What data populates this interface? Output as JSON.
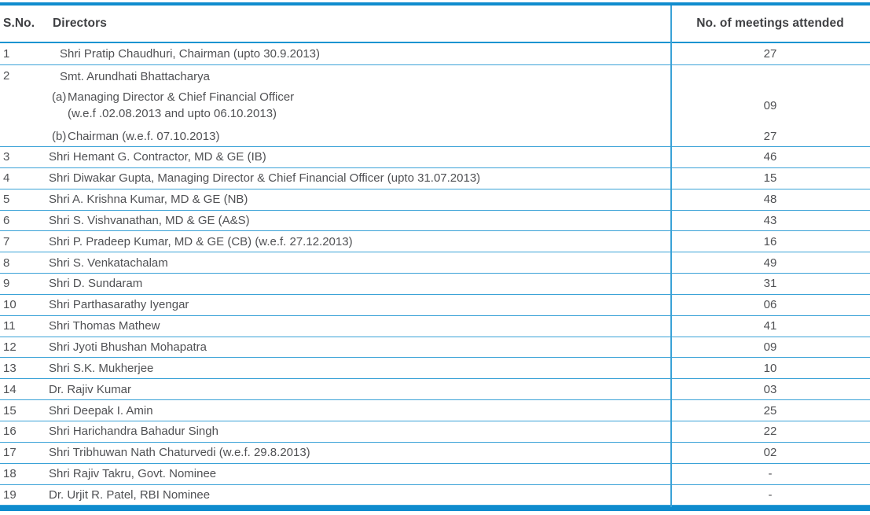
{
  "colors": {
    "line_thick": "#0f8cce",
    "line_thin": "#3aa2d7",
    "header_line": "#1b94d1",
    "header_text": "#3f4043",
    "body_text": "#505154"
  },
  "table": {
    "columns": [
      "S.No.",
      "Directors",
      "No. of meetings attended"
    ],
    "rows": [
      {
        "sno": "1",
        "director": "Shri Pratip Chaudhuri, Chairman (upto 30.9.2013)",
        "meetings": "27",
        "indent": true
      },
      {
        "sno": "2",
        "director": "Smt. Arundhati Bhattacharya",
        "indent": true,
        "sub_items": [
          {
            "label": "(a)",
            "lines": [
              "Managing Director & Chief Financial Officer",
              "(w.e.f .02.08.2013 and upto 06.10.2013)"
            ],
            "meetings": "09"
          },
          {
            "label": "(b)",
            "lines": [
              "Chairman (w.e.f. 07.10.2013)"
            ],
            "meetings": "27"
          }
        ]
      },
      {
        "sno": "3",
        "director": "Shri Hemant G. Contractor, MD & GE (IB)",
        "meetings": "46"
      },
      {
        "sno": "4",
        "director": "Shri Diwakar Gupta, Managing Director & Chief Financial Officer (upto 31.07.2013)",
        "meetings": "15"
      },
      {
        "sno": "5",
        "director": "Shri A. Krishna Kumar, MD & GE (NB)",
        "meetings": "48"
      },
      {
        "sno": "6",
        "director": "Shri S. Vishvanathan, MD & GE (A&S)",
        "meetings": "43"
      },
      {
        "sno": "7",
        "director": "Shri P. Pradeep Kumar, MD & GE (CB) (w.e.f. 27.12.2013)",
        "meetings": "16"
      },
      {
        "sno": "8",
        "director": "Shri S. Venkatachalam",
        "meetings": "49"
      },
      {
        "sno": "9",
        "director": "Shri D. Sundaram",
        "meetings": "31"
      },
      {
        "sno": "10",
        "director": "Shri Parthasarathy Iyengar",
        "meetings": "06"
      },
      {
        "sno": "11",
        "director": "Shri Thomas Mathew",
        "meetings": "41"
      },
      {
        "sno": "12",
        "director": "Shri Jyoti Bhushan  Mohapatra",
        "meetings": "09"
      },
      {
        "sno": "13",
        "director": "Shri S.K. Mukherjee",
        "meetings": "10"
      },
      {
        "sno": "14",
        "director": "Dr. Rajiv Kumar",
        "meetings": "03"
      },
      {
        "sno": "15",
        "director": "Shri Deepak I. Amin",
        "meetings": "25"
      },
      {
        "sno": "16",
        "director": "Shri Harichandra Bahadur Singh",
        "meetings": "22"
      },
      {
        "sno": "17",
        "director": "Shri Tribhuwan Nath Chaturvedi (w.e.f. 29.8.2013)",
        "meetings": "02"
      },
      {
        "sno": "18",
        "director": "Shri Rajiv Takru, Govt. Nominee",
        "meetings": "-"
      },
      {
        "sno": "19",
        "director": "Dr. Urjit R. Patel, RBI Nominee",
        "meetings": "-"
      }
    ]
  }
}
